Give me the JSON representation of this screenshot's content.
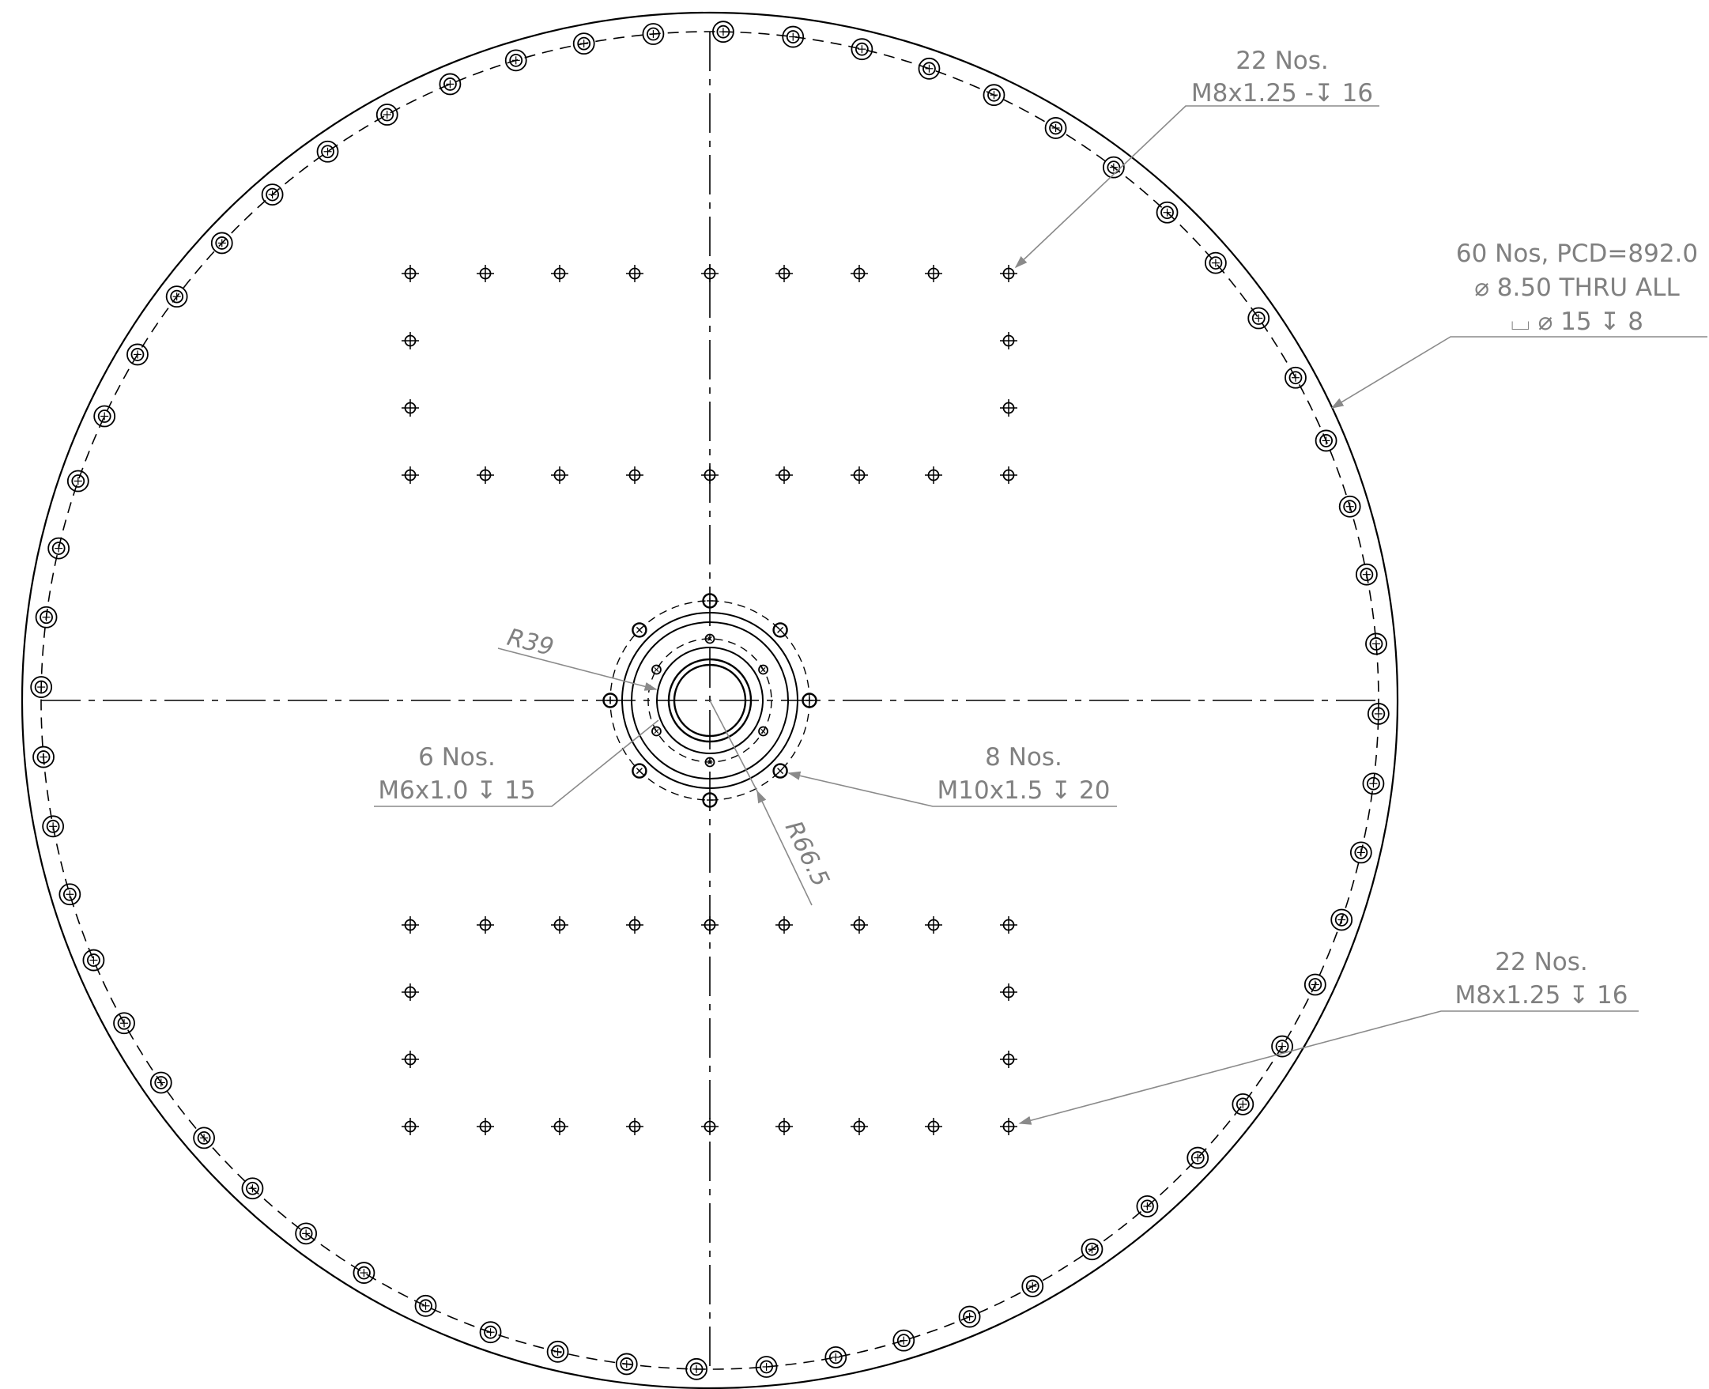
{
  "callouts": {
    "top_tapped": {
      "qty": "22 Nos.",
      "spec": "M8x1.25 -↧ 16"
    },
    "bolt_circle": {
      "qty": "60 Nos, PCD=892.0",
      "spec": "⌀ 8.50 THRU ALL",
      "cbore": "⌴ ⌀ 15 ↧ 8"
    },
    "hub_m6": {
      "qty": "6 Nos.",
      "spec": "M6x1.0 ↧ 15"
    },
    "hub_m10": {
      "qty": "8 Nos.",
      "spec": "M10x1.5 ↧ 20"
    },
    "bottom_tapped": {
      "qty": "22 Nos.",
      "spec": "M8x1.25 ↧ 16"
    },
    "radius_inner": "R39",
    "radius_outer": "R66.5"
  },
  "features": {
    "bolt_circle_hole_count": 60,
    "pcd": 892.0,
    "hub_m10_hole_count": 8,
    "hub_m6_hole_count": 6,
    "tapped_pattern_hole_count_each": 22
  }
}
